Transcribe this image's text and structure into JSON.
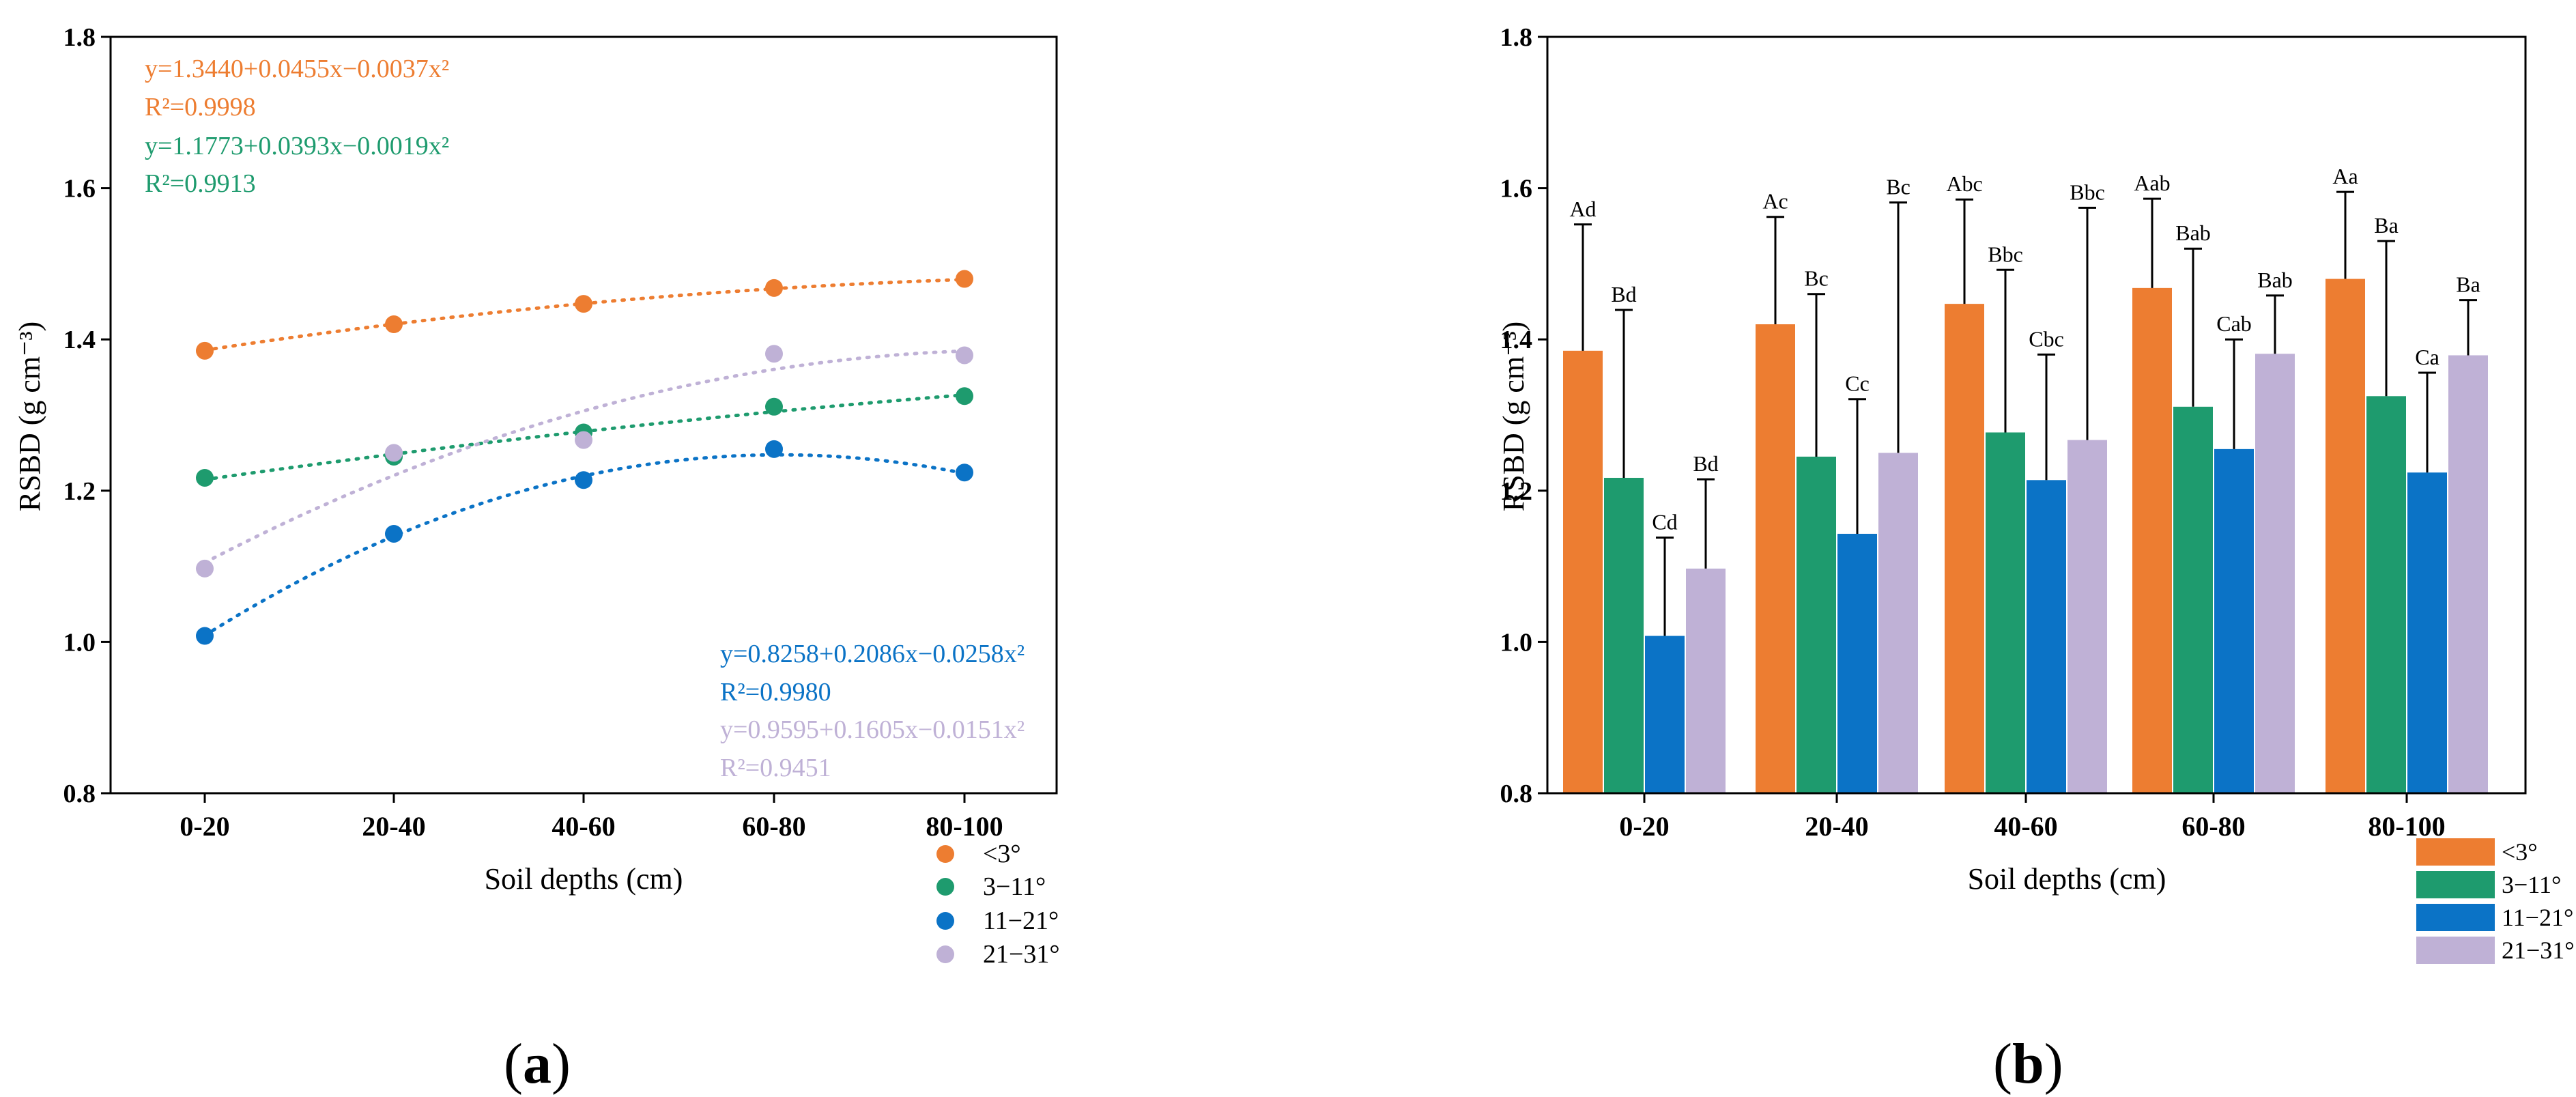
{
  "chart_data": [
    {
      "type": "scatter",
      "panel": "(a)",
      "panel_letter": "a",
      "xlabel": "Soil depths (cm)",
      "ylabel": "RSBD (g cm⁻³)",
      "ylim": [
        0.8,
        1.8
      ],
      "yticks": [
        "0.8",
        "1.0",
        "1.2",
        "1.4",
        "1.6",
        "1.8"
      ],
      "categories": [
        "0-20",
        "20-40",
        "40-60",
        "60-80",
        "80-100"
      ],
      "grid": false,
      "legend_position": "below-right",
      "series": [
        {
          "name": "<3°",
          "color": "#ED7D31",
          "values": [
            1.385,
            1.42,
            1.447,
            1.468,
            1.48
          ],
          "fit": [
            1.344,
            0.0455,
            -0.0037
          ],
          "equation": "y=1.3440+0.0455x−0.0037x²",
          "r2": "R²=0.9998"
        },
        {
          "name": "3−11°",
          "color": "#1E9B6E",
          "values": [
            1.217,
            1.245,
            1.277,
            1.311,
            1.325
          ],
          "fit": [
            1.1773,
            0.0393,
            -0.0019
          ],
          "equation": "y=1.1773+0.0393x−0.0019x²",
          "r2": "R²=0.9913"
        },
        {
          "name": "11−21°",
          "color": "#0B73C6",
          "values": [
            1.008,
            1.143,
            1.214,
            1.255,
            1.224
          ],
          "fit": [
            0.8258,
            0.2086,
            -0.0258
          ],
          "equation": "y=0.8258+0.2086x−0.0258x²",
          "r2": "R²=0.9980"
        },
        {
          "name": "21−31°",
          "color": "#BFB1D6",
          "values": [
            1.097,
            1.25,
            1.267,
            1.381,
            1.379
          ],
          "fit": [
            0.9595,
            0.1605,
            -0.0151
          ],
          "equation": "y=0.9595+0.1605x−0.0151x²",
          "r2": "R²=0.9451"
        }
      ]
    },
    {
      "type": "bar",
      "panel": "(b)",
      "panel_letter": "b",
      "xlabel": "Soil depths (cm)",
      "ylabel": "RSBD (g cm⁻³)",
      "ylim": [
        0.8,
        1.8
      ],
      "yticks": [
        "0.8",
        "1.0",
        "1.2",
        "1.4",
        "1.6",
        "1.8"
      ],
      "categories": [
        "0-20",
        "20-40",
        "40-60",
        "60-80",
        "80-100"
      ],
      "grid": false,
      "legend_position": "bottom-right",
      "series": [
        {
          "name": "<3°",
          "color": "#ED7D31",
          "values": [
            1.385,
            1.42,
            1.447,
            1.468,
            1.48
          ],
          "errors": [
            0.167,
            0.142,
            0.138,
            0.118,
            0.115
          ],
          "labels": [
            "Ad",
            "Ac",
            "Abc",
            "Aab",
            "Aa"
          ]
        },
        {
          "name": "3−11°",
          "color": "#1E9B6E",
          "values": [
            1.217,
            1.245,
            1.277,
            1.311,
            1.325
          ],
          "errors": [
            0.222,
            0.215,
            0.215,
            0.209,
            0.205
          ],
          "labels": [
            "Bd",
            "Bc",
            "Bbc",
            "Bab",
            "Ba"
          ]
        },
        {
          "name": "11−21°",
          "color": "#0B73C6",
          "values": [
            1.008,
            1.143,
            1.214,
            1.255,
            1.224
          ],
          "errors": [
            0.13,
            0.178,
            0.166,
            0.145,
            0.132
          ],
          "labels": [
            "Cd",
            "Cc",
            "Cbc",
            "Cab",
            "Ca"
          ]
        },
        {
          "name": "21−31°",
          "color": "#BFB1D6",
          "values": [
            1.097,
            1.25,
            1.267,
            1.381,
            1.379
          ],
          "errors": [
            0.118,
            0.331,
            0.307,
            0.077,
            0.073
          ],
          "labels": [
            "Bd",
            "Bc",
            "Bbc",
            "Bab",
            "Ba"
          ]
        }
      ]
    }
  ]
}
